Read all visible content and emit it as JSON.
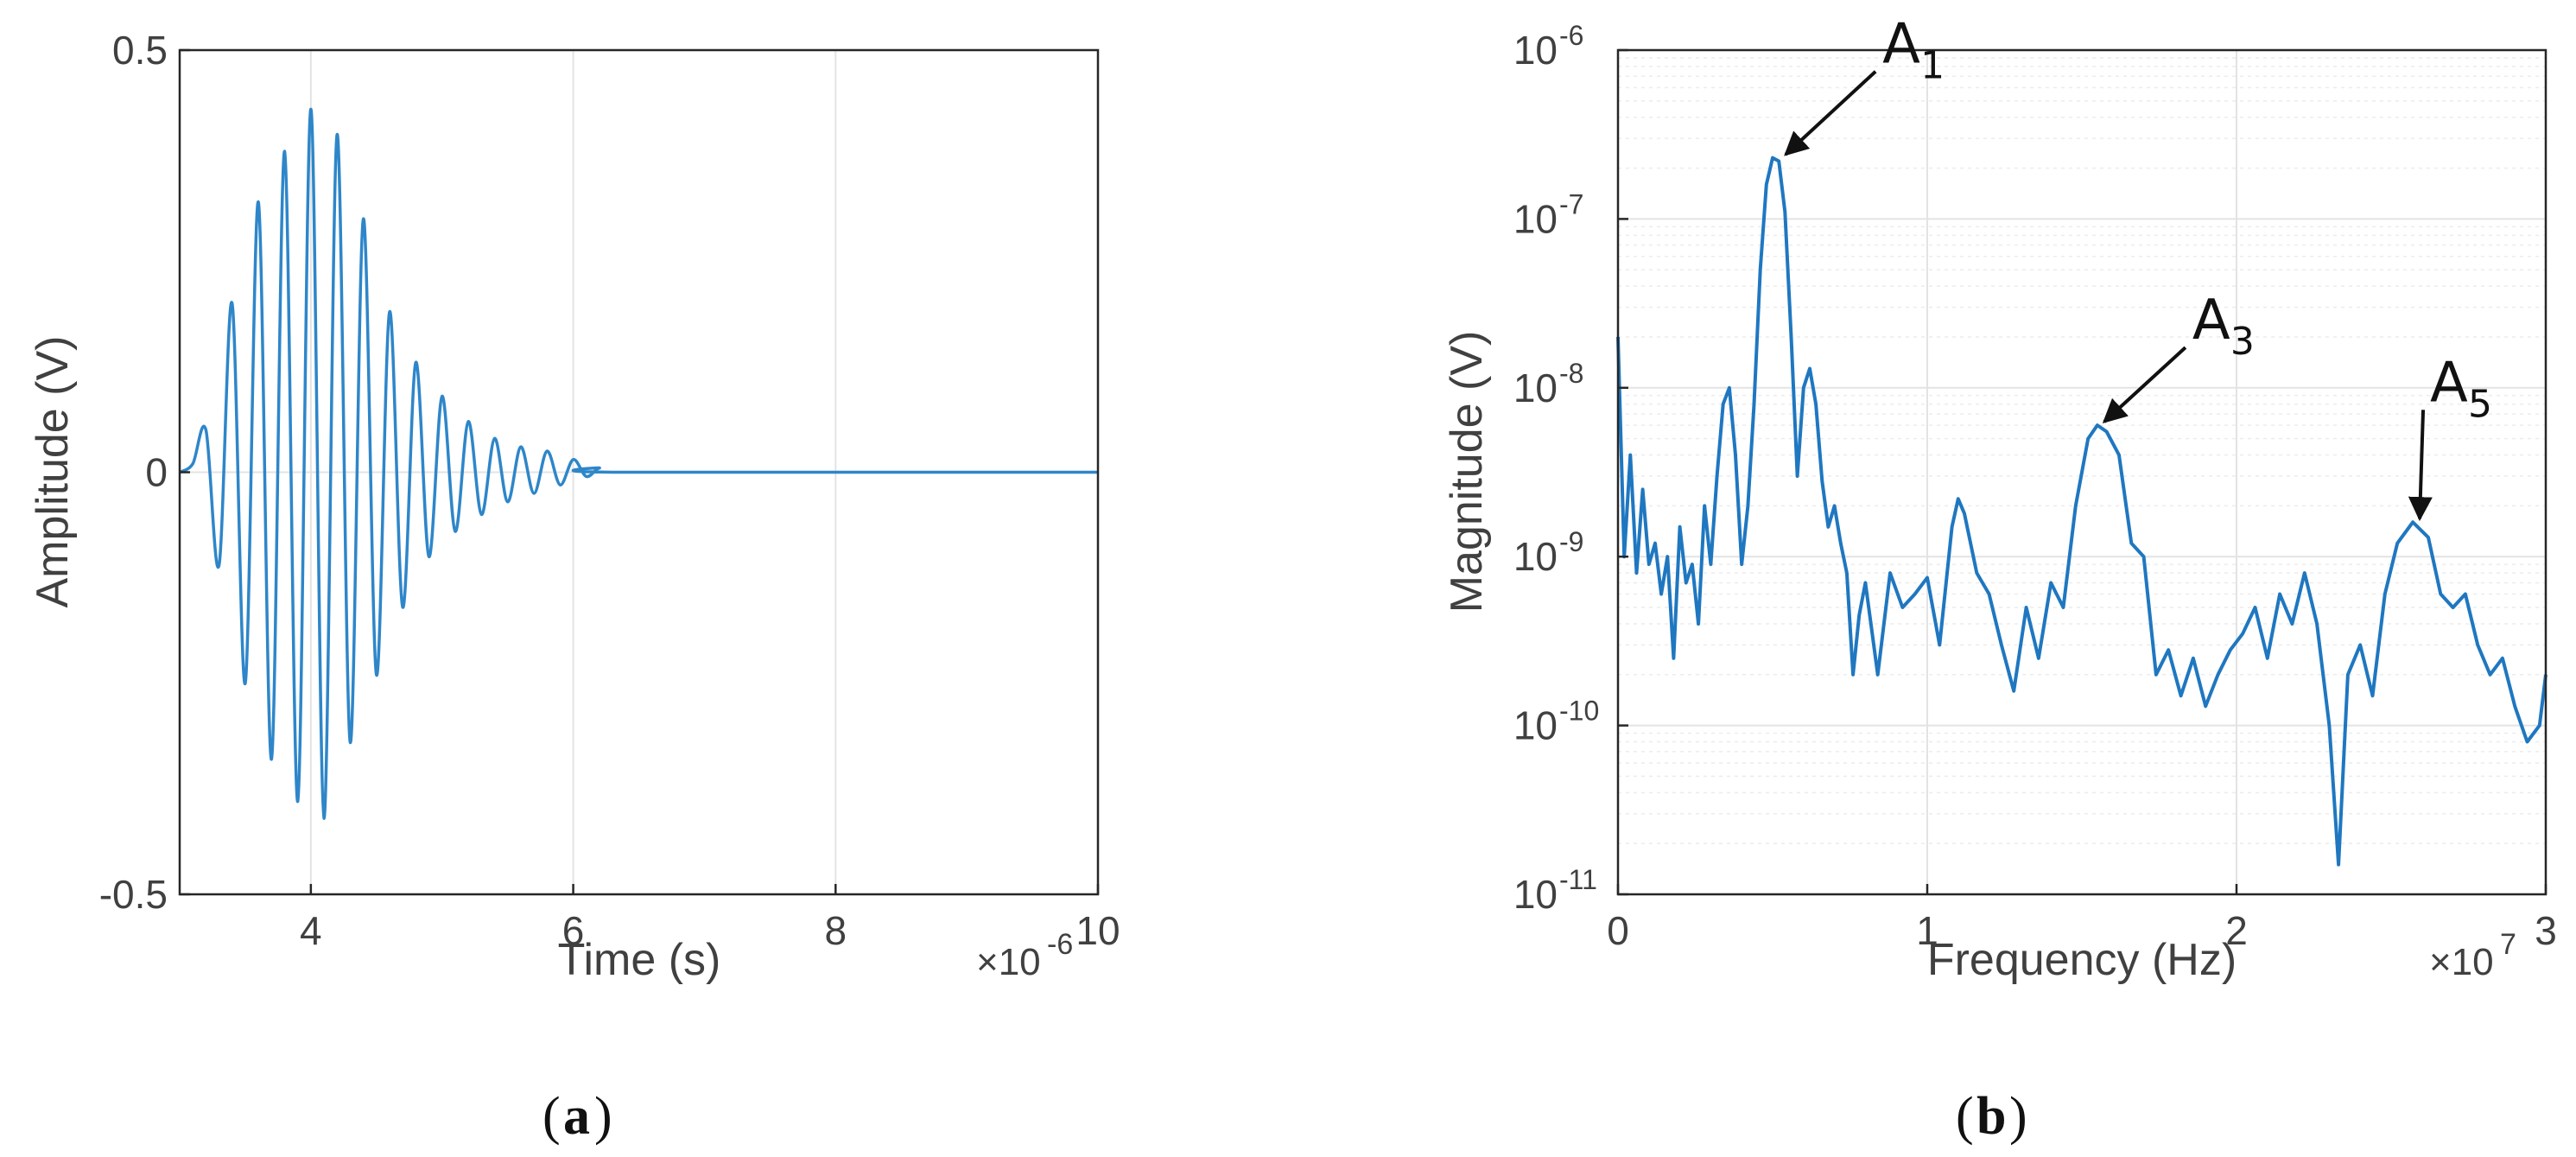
{
  "figure": {
    "panel_a_label": "a",
    "panel_b_label": "b"
  },
  "chart_data": [
    {
      "type": "line",
      "panel": "a",
      "title": "",
      "xlabel": "Time (s)",
      "ylabel": "Amplitude (V)",
      "x_multiplier_label": "×10",
      "x_multiplier_exp": "-6",
      "xlim": [
        3,
        10
      ],
      "ylim": [
        -0.5,
        0.5
      ],
      "xticks": [
        "4",
        "6",
        "8",
        "10"
      ],
      "yticks": [
        "0.5",
        "0",
        "-0.5"
      ],
      "grid": true,
      "line_color": "#2e86c9",
      "series": [
        {
          "x": [
            3.0,
            3.1,
            3.2,
            3.3,
            3.4,
            3.5,
            3.6,
            3.7,
            3.8,
            3.9,
            4.0,
            4.1,
            4.2,
            4.3,
            4.4,
            4.5,
            4.6,
            4.7,
            4.8,
            4.9,
            5.0,
            5.1,
            5.2,
            5.3,
            5.4,
            5.5,
            5.6,
            5.7,
            5.8,
            5.9,
            6.0,
            6.1,
            6.2,
            6.3,
            10.0
          ],
          "y": [
            0.0,
            0.01,
            0.05,
            -0.11,
            0.2,
            -0.25,
            0.32,
            -0.34,
            0.38,
            -0.39,
            0.43,
            -0.41,
            0.4,
            -0.32,
            0.3,
            -0.24,
            0.19,
            -0.16,
            0.13,
            -0.1,
            0.09,
            -0.07,
            0.06,
            -0.05,
            0.04,
            -0.035,
            0.03,
            -0.025,
            0.025,
            -0.015,
            0.015,
            -0.005,
            0.005,
            0.0,
            0.0
          ]
        }
      ]
    },
    {
      "type": "line",
      "panel": "b",
      "title": "",
      "xlabel": "Frequency (Hz)",
      "ylabel": "Magnitude (V)",
      "x_multiplier_label": "×10",
      "x_multiplier_exp": "7",
      "xlim": [
        0,
        3
      ],
      "ylim": [
        1e-11,
        1e-06
      ],
      "yscale": "log",
      "xticks": [
        "0",
        "1",
        "2",
        "3"
      ],
      "yticks": [
        {
          "base": "10",
          "exp": "-6"
        },
        {
          "base": "10",
          "exp": "-7"
        },
        {
          "base": "10",
          "exp": "-8"
        },
        {
          "base": "10",
          "exp": "-9"
        },
        {
          "base": "10",
          "exp": "-10"
        },
        {
          "base": "10",
          "exp": "-11"
        }
      ],
      "grid": true,
      "line_color": "#1f77c0",
      "annotations": [
        {
          "base": "A",
          "sub": "1",
          "x": 0.52,
          "y": 2.3e-07
        },
        {
          "base": "A",
          "sub": "3",
          "x": 1.55,
          "y": 6e-09
        },
        {
          "base": "A",
          "sub": "5",
          "x": 2.57,
          "y": 1.6e-09
        }
      ],
      "series": [
        {
          "x": [
            0.0,
            0.02,
            0.04,
            0.06,
            0.08,
            0.1,
            0.12,
            0.14,
            0.16,
            0.18,
            0.2,
            0.22,
            0.24,
            0.26,
            0.28,
            0.3,
            0.32,
            0.34,
            0.36,
            0.38,
            0.4,
            0.42,
            0.44,
            0.46,
            0.48,
            0.5,
            0.52,
            0.54,
            0.56,
            0.58,
            0.6,
            0.62,
            0.64,
            0.66,
            0.68,
            0.7,
            0.72,
            0.74,
            0.76,
            0.78,
            0.8,
            0.84,
            0.88,
            0.92,
            0.96,
            1.0,
            1.04,
            1.08,
            1.1,
            1.12,
            1.16,
            1.2,
            1.24,
            1.28,
            1.32,
            1.36,
            1.4,
            1.44,
            1.48,
            1.52,
            1.55,
            1.58,
            1.62,
            1.66,
            1.7,
            1.74,
            1.78,
            1.82,
            1.86,
            1.9,
            1.94,
            1.98,
            2.02,
            2.06,
            2.1,
            2.14,
            2.18,
            2.22,
            2.26,
            2.3,
            2.33,
            2.36,
            2.4,
            2.44,
            2.48,
            2.52,
            2.57,
            2.62,
            2.66,
            2.7,
            2.74,
            2.78,
            2.82,
            2.86,
            2.9,
            2.94,
            2.98,
            3.0
          ],
          "y": [
            2e-08,
            1e-09,
            4e-09,
            8e-10,
            2.5e-09,
            9e-10,
            1.2e-09,
            6e-10,
            1e-09,
            2.5e-10,
            1.5e-09,
            7e-10,
            9e-10,
            4e-10,
            2e-09,
            9e-10,
            3e-09,
            8e-09,
            1e-08,
            4e-09,
            9e-10,
            2e-09,
            8e-09,
            5e-08,
            1.6e-07,
            2.3e-07,
            2.2e-07,
            1.1e-07,
            2e-08,
            3e-09,
            1e-08,
            1.3e-08,
            8e-09,
            2.8e-09,
            1.5e-09,
            2e-09,
            1.2e-09,
            8e-10,
            2e-10,
            4.5e-10,
            7e-10,
            2e-10,
            8e-10,
            5e-10,
            6e-10,
            7.5e-10,
            3e-10,
            1.5e-09,
            2.2e-09,
            1.8e-09,
            8e-10,
            6e-10,
            3e-10,
            1.6e-10,
            5e-10,
            2.5e-10,
            7e-10,
            5e-10,
            2e-09,
            5e-09,
            6e-09,
            5.5e-09,
            4e-09,
            1.2e-09,
            1e-09,
            2e-10,
            2.8e-10,
            1.5e-10,
            2.5e-10,
            1.3e-10,
            2e-10,
            2.8e-10,
            3.5e-10,
            5e-10,
            2.5e-10,
            6e-10,
            4e-10,
            8e-10,
            4e-10,
            1e-10,
            1.5e-11,
            2e-10,
            3e-10,
            1.5e-10,
            6e-10,
            1.2e-09,
            1.6e-09,
            1.3e-09,
            6e-10,
            5e-10,
            6e-10,
            3e-10,
            2e-10,
            2.5e-10,
            1.3e-10,
            8e-11,
            1e-10,
            2e-10
          ]
        }
      ]
    }
  ]
}
